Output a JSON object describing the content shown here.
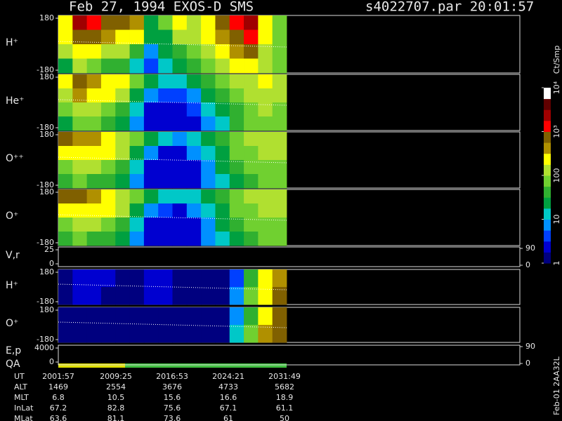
{
  "chart_data": {
    "type": "spectrogram",
    "title": "Feb 27, 1994   EXOS-D SMS",
    "subtitle": "s4022707.par  20:01:57",
    "side_label": "Feb-01 2AA32L",
    "colorbar": {
      "label": "Ct/Smp",
      "log": true,
      "clim": [
        1,
        10000
      ],
      "ticks": [
        1,
        10,
        100,
        {
          "value": 1000,
          "label": "10³"
        },
        {
          "value": 10000,
          "label": "10⁴"
        }
      ]
    },
    "panels": [
      {
        "label": "H⁺",
        "ylim": [
          -180,
          180
        ],
        "yticks": [
          -180,
          180
        ],
        "values": [
          [
            300,
            2000,
            1500,
            800,
            600,
            400,
            30,
            60,
            200,
            150,
            300,
            800,
            1500,
            2000,
            300,
            80
          ],
          [
            200,
            800,
            600,
            400,
            300,
            200,
            20,
            30,
            100,
            100,
            200,
            400,
            800,
            1200,
            200,
            80
          ],
          [
            100,
            300,
            200,
            150,
            100,
            50,
            8,
            20,
            50,
            60,
            100,
            200,
            400,
            600,
            150,
            80
          ],
          [
            20,
            100,
            80,
            50,
            40,
            10,
            5,
            10,
            30,
            40,
            60,
            100,
            200,
            300,
            100,
            80
          ]
        ]
      },
      {
        "label": "He⁺",
        "ylim": [
          -180,
          180
        ],
        "yticks": [
          -180,
          180
        ],
        "values": [
          [
            300,
            600,
            500,
            300,
            200,
            60,
            20,
            10,
            10,
            20,
            40,
            60,
            100,
            150,
            200,
            100
          ],
          [
            150,
            400,
            300,
            200,
            100,
            30,
            8,
            4,
            4,
            8,
            20,
            40,
            80,
            120,
            150,
            100
          ],
          [
            60,
            150,
            120,
            80,
            40,
            10,
            3,
            2,
            2,
            4,
            10,
            20,
            50,
            80,
            100,
            90
          ],
          [
            30,
            80,
            60,
            40,
            20,
            6,
            2,
            2,
            2,
            3,
            8,
            15,
            40,
            60,
            80,
            80
          ]
        ]
      },
      {
        "label": "O⁺⁺",
        "ylim": [
          -180,
          180
        ],
        "yticks": [
          -180,
          180
        ],
        "values": [
          [
            800,
            500,
            400,
            300,
            150,
            60,
            20,
            10,
            8,
            15,
            30,
            50,
            80,
            120,
            150,
            100
          ],
          [
            300,
            300,
            250,
            200,
            100,
            30,
            8,
            3,
            3,
            6,
            15,
            30,
            60,
            90,
            120,
            100
          ],
          [
            80,
            120,
            100,
            80,
            40,
            10,
            3,
            2,
            2,
            3,
            8,
            20,
            40,
            70,
            90,
            90
          ],
          [
            40,
            60,
            50,
            40,
            20,
            6,
            2,
            2,
            2,
            3,
            6,
            12,
            30,
            50,
            70,
            80
          ]
        ]
      },
      {
        "label": "O⁺",
        "ylim": [
          -180,
          180
        ],
        "yticks": [
          -180,
          180
        ],
        "values": [
          [
            700,
            600,
            400,
            300,
            150,
            60,
            20,
            10,
            10,
            15,
            30,
            50,
            80,
            120,
            150,
            100
          ],
          [
            300,
            300,
            250,
            200,
            100,
            30,
            8,
            4,
            3,
            6,
            15,
            30,
            60,
            90,
            120,
            100
          ],
          [
            80,
            120,
            100,
            80,
            40,
            10,
            3,
            2,
            2,
            3,
            8,
            20,
            40,
            70,
            90,
            90
          ],
          [
            40,
            60,
            50,
            40,
            20,
            6,
            2,
            2,
            2,
            3,
            6,
            12,
            30,
            50,
            70,
            80
          ]
        ]
      },
      {
        "label": "V,r",
        "ylim": [
          0,
          25
        ],
        "yticks": [
          0,
          25
        ],
        "y2lim": [
          0,
          90
        ],
        "y2ticks": [
          0,
          90
        ]
      },
      {
        "label": "H⁺",
        "ylim": [
          -180,
          180
        ],
        "yticks": [
          -180,
          180
        ],
        "values": [
          [
            1,
            3,
            3,
            2,
            1,
            1,
            2,
            3,
            1,
            1,
            1,
            1,
            5,
            40,
            200,
            500
          ],
          [
            1,
            2,
            2,
            1,
            1,
            1,
            2,
            2,
            1,
            1,
            1,
            1,
            8,
            60,
            300,
            700
          ]
        ]
      },
      {
        "label": "O⁺",
        "ylim": [
          -180,
          180
        ],
        "yticks": [
          -180,
          180
        ],
        "values": [
          [
            1,
            1,
            1,
            1,
            1,
            1,
            1,
            1,
            1,
            1,
            1,
            1,
            6,
            50,
            300,
            800
          ],
          [
            1,
            1,
            1,
            1,
            1,
            1,
            1,
            1,
            1,
            1,
            1,
            1,
            10,
            80,
            400,
            900
          ]
        ]
      },
      {
        "label": "E,p",
        "label2": "QA",
        "ylim": [
          0,
          4000
        ],
        "yticks": [
          0,
          4000
        ],
        "y2lim": [
          0,
          90
        ],
        "y2ticks": [
          0,
          90
        ]
      }
    ],
    "ephemeris": [
      {
        "label": "UT",
        "values": [
          "2001:57",
          "2009:25",
          "2016:53",
          "2024:21",
          "2031:49"
        ]
      },
      {
        "label": "ALT",
        "values": [
          1469,
          2554,
          3676,
          4733,
          5682
        ]
      },
      {
        "label": "MLT",
        "values": [
          6.8,
          10.5,
          15.6,
          16.6,
          18.9
        ]
      },
      {
        "label": "InLat",
        "values": [
          67.2,
          82.8,
          75.6,
          67.1,
          61.1
        ]
      },
      {
        "label": "MLat",
        "values": [
          63.6,
          81.1,
          73.6,
          61.0,
          50.0
        ]
      }
    ]
  }
}
